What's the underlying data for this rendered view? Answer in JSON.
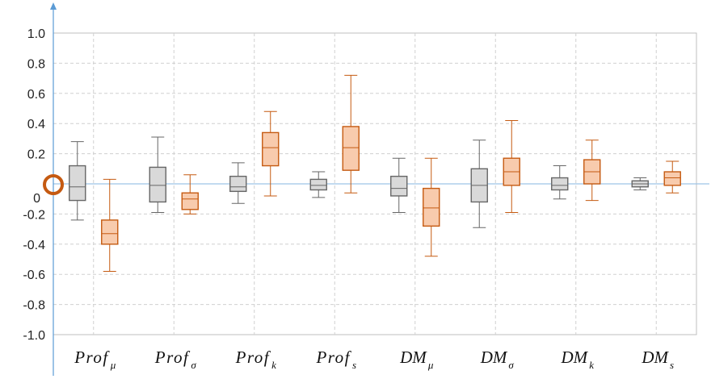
{
  "chart_data": {
    "type": "boxplot",
    "categories": [
      {
        "base": "Prof",
        "sub": "μ"
      },
      {
        "base": "Prof",
        "sub": "σ"
      },
      {
        "base": "Prof",
        "sub": "k"
      },
      {
        "base": "Prof",
        "sub": "s"
      },
      {
        "base": "DM",
        "sub": "μ"
      },
      {
        "base": "DM",
        "sub": "σ"
      },
      {
        "base": "DM",
        "sub": "k"
      },
      {
        "base": "DM",
        "sub": "s"
      }
    ],
    "y_ticks": [
      "1.0",
      "0.8",
      "0.6",
      "0.4",
      "0.2",
      "0",
      "-0.2",
      "-0.4",
      "-0.6",
      "-0.8",
      "-1.0"
    ],
    "y_tick_values": [
      1.0,
      0.8,
      0.6,
      0.4,
      0.2,
      0,
      -0.2,
      -0.4,
      -0.6,
      -0.8,
      -1.0
    ],
    "ylim": [
      -1.0,
      1.0
    ],
    "grid": true,
    "series": [
      {
        "color": "#d9d9d9",
        "stroke": "#666666",
        "boxes": [
          {
            "min": -0.24,
            "q1": -0.11,
            "median": -0.02,
            "q3": 0.12,
            "max": 0.28
          },
          {
            "min": -0.19,
            "q1": -0.12,
            "median": -0.01,
            "q3": 0.11,
            "max": 0.31
          },
          {
            "min": -0.13,
            "q1": -0.05,
            "median": -0.02,
            "q3": 0.05,
            "max": 0.14
          },
          {
            "min": -0.09,
            "q1": -0.04,
            "median": -0.01,
            "q3": 0.03,
            "max": 0.08
          },
          {
            "min": -0.19,
            "q1": -0.08,
            "median": -0.03,
            "q3": 0.05,
            "max": 0.17
          },
          {
            "min": -0.29,
            "q1": -0.12,
            "median": -0.01,
            "q3": 0.1,
            "max": 0.29
          },
          {
            "min": -0.1,
            "q1": -0.04,
            "median": -0.01,
            "q3": 0.04,
            "max": 0.12
          },
          {
            "min": -0.04,
            "q1": -0.02,
            "median": 0.0,
            "q3": 0.02,
            "max": 0.04
          }
        ]
      },
      {
        "color": "#f8cbad",
        "stroke": "#c55a11",
        "boxes": [
          {
            "min": -0.58,
            "q1": -0.4,
            "median": -0.33,
            "q3": -0.24,
            "max": 0.03
          },
          {
            "min": -0.2,
            "q1": -0.17,
            "median": -0.1,
            "q3": -0.06,
            "max": 0.06
          },
          {
            "min": -0.08,
            "q1": 0.12,
            "median": 0.24,
            "q3": 0.34,
            "max": 0.48
          },
          {
            "min": -0.06,
            "q1": 0.09,
            "median": 0.24,
            "q3": 0.38,
            "max": 0.72
          },
          {
            "min": -0.48,
            "q1": -0.28,
            "median": -0.16,
            "q3": -0.03,
            "max": 0.17
          },
          {
            "min": -0.19,
            "q1": -0.01,
            "median": 0.08,
            "q3": 0.17,
            "max": 0.42
          },
          {
            "min": -0.11,
            "q1": 0.0,
            "median": 0.08,
            "q3": 0.16,
            "max": 0.29
          },
          {
            "min": -0.06,
            "q1": -0.01,
            "median": 0.04,
            "q3": 0.08,
            "max": 0.15
          }
        ]
      }
    ],
    "origin_marker_color": "#c55a11",
    "axis_arrow_color": "#5b9bd5"
  }
}
